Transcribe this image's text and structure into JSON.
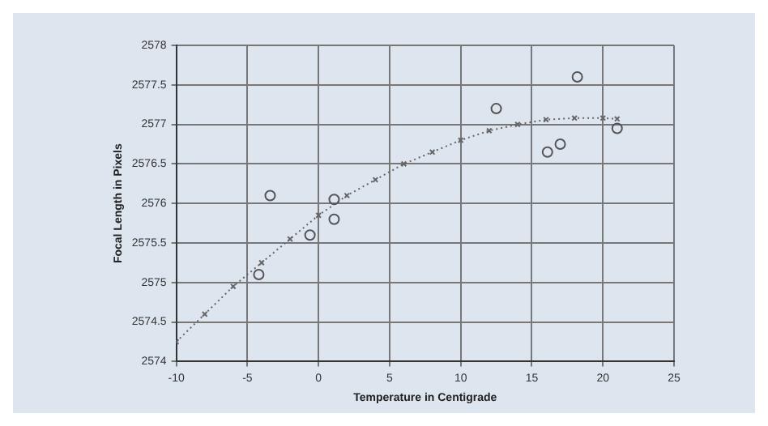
{
  "chart_data": {
    "type": "scatter",
    "xlabel": "Temperature in Centigrade",
    "ylabel": "Focal Length in Pixels",
    "xlim": [
      -10,
      25
    ],
    "xticks": [
      -10,
      -5,
      0,
      5,
      10,
      15,
      20,
      25
    ],
    "ylim": [
      2574,
      2578
    ],
    "yticks": [
      2574,
      2574.5,
      2575,
      2575.5,
      2576,
      2576.5,
      2577,
      2577.5,
      2578
    ],
    "grid": true,
    "series": [
      {
        "type": "scatter",
        "marker": "circle",
        "color": "#555555",
        "x": [
          -4.2,
          -3.4,
          -0.6,
          1.1,
          1.1,
          12.5,
          16.1,
          17,
          18.2,
          21
        ],
        "values": [
          2575.1,
          2576.1,
          2575.6,
          2576.05,
          2575.8,
          2577.2,
          2576.65,
          2576.75,
          2577.6,
          2576.95
        ]
      },
      {
        "type": "line",
        "marker": "cross",
        "line_style": "dotted",
        "color": "#666666",
        "x": [
          -10,
          -8,
          -6,
          -4,
          -2,
          0,
          2,
          4,
          6,
          8,
          10,
          12,
          14,
          16,
          18,
          20,
          21
        ],
        "values": [
          2574.25,
          2574.6,
          2574.95,
          2575.25,
          2575.55,
          2575.85,
          2576.1,
          2576.3,
          2576.5,
          2576.65,
          2576.8,
          2576.92,
          2577,
          2577.06,
          2577.08,
          2577.08,
          2577.07
        ]
      }
    ]
  }
}
